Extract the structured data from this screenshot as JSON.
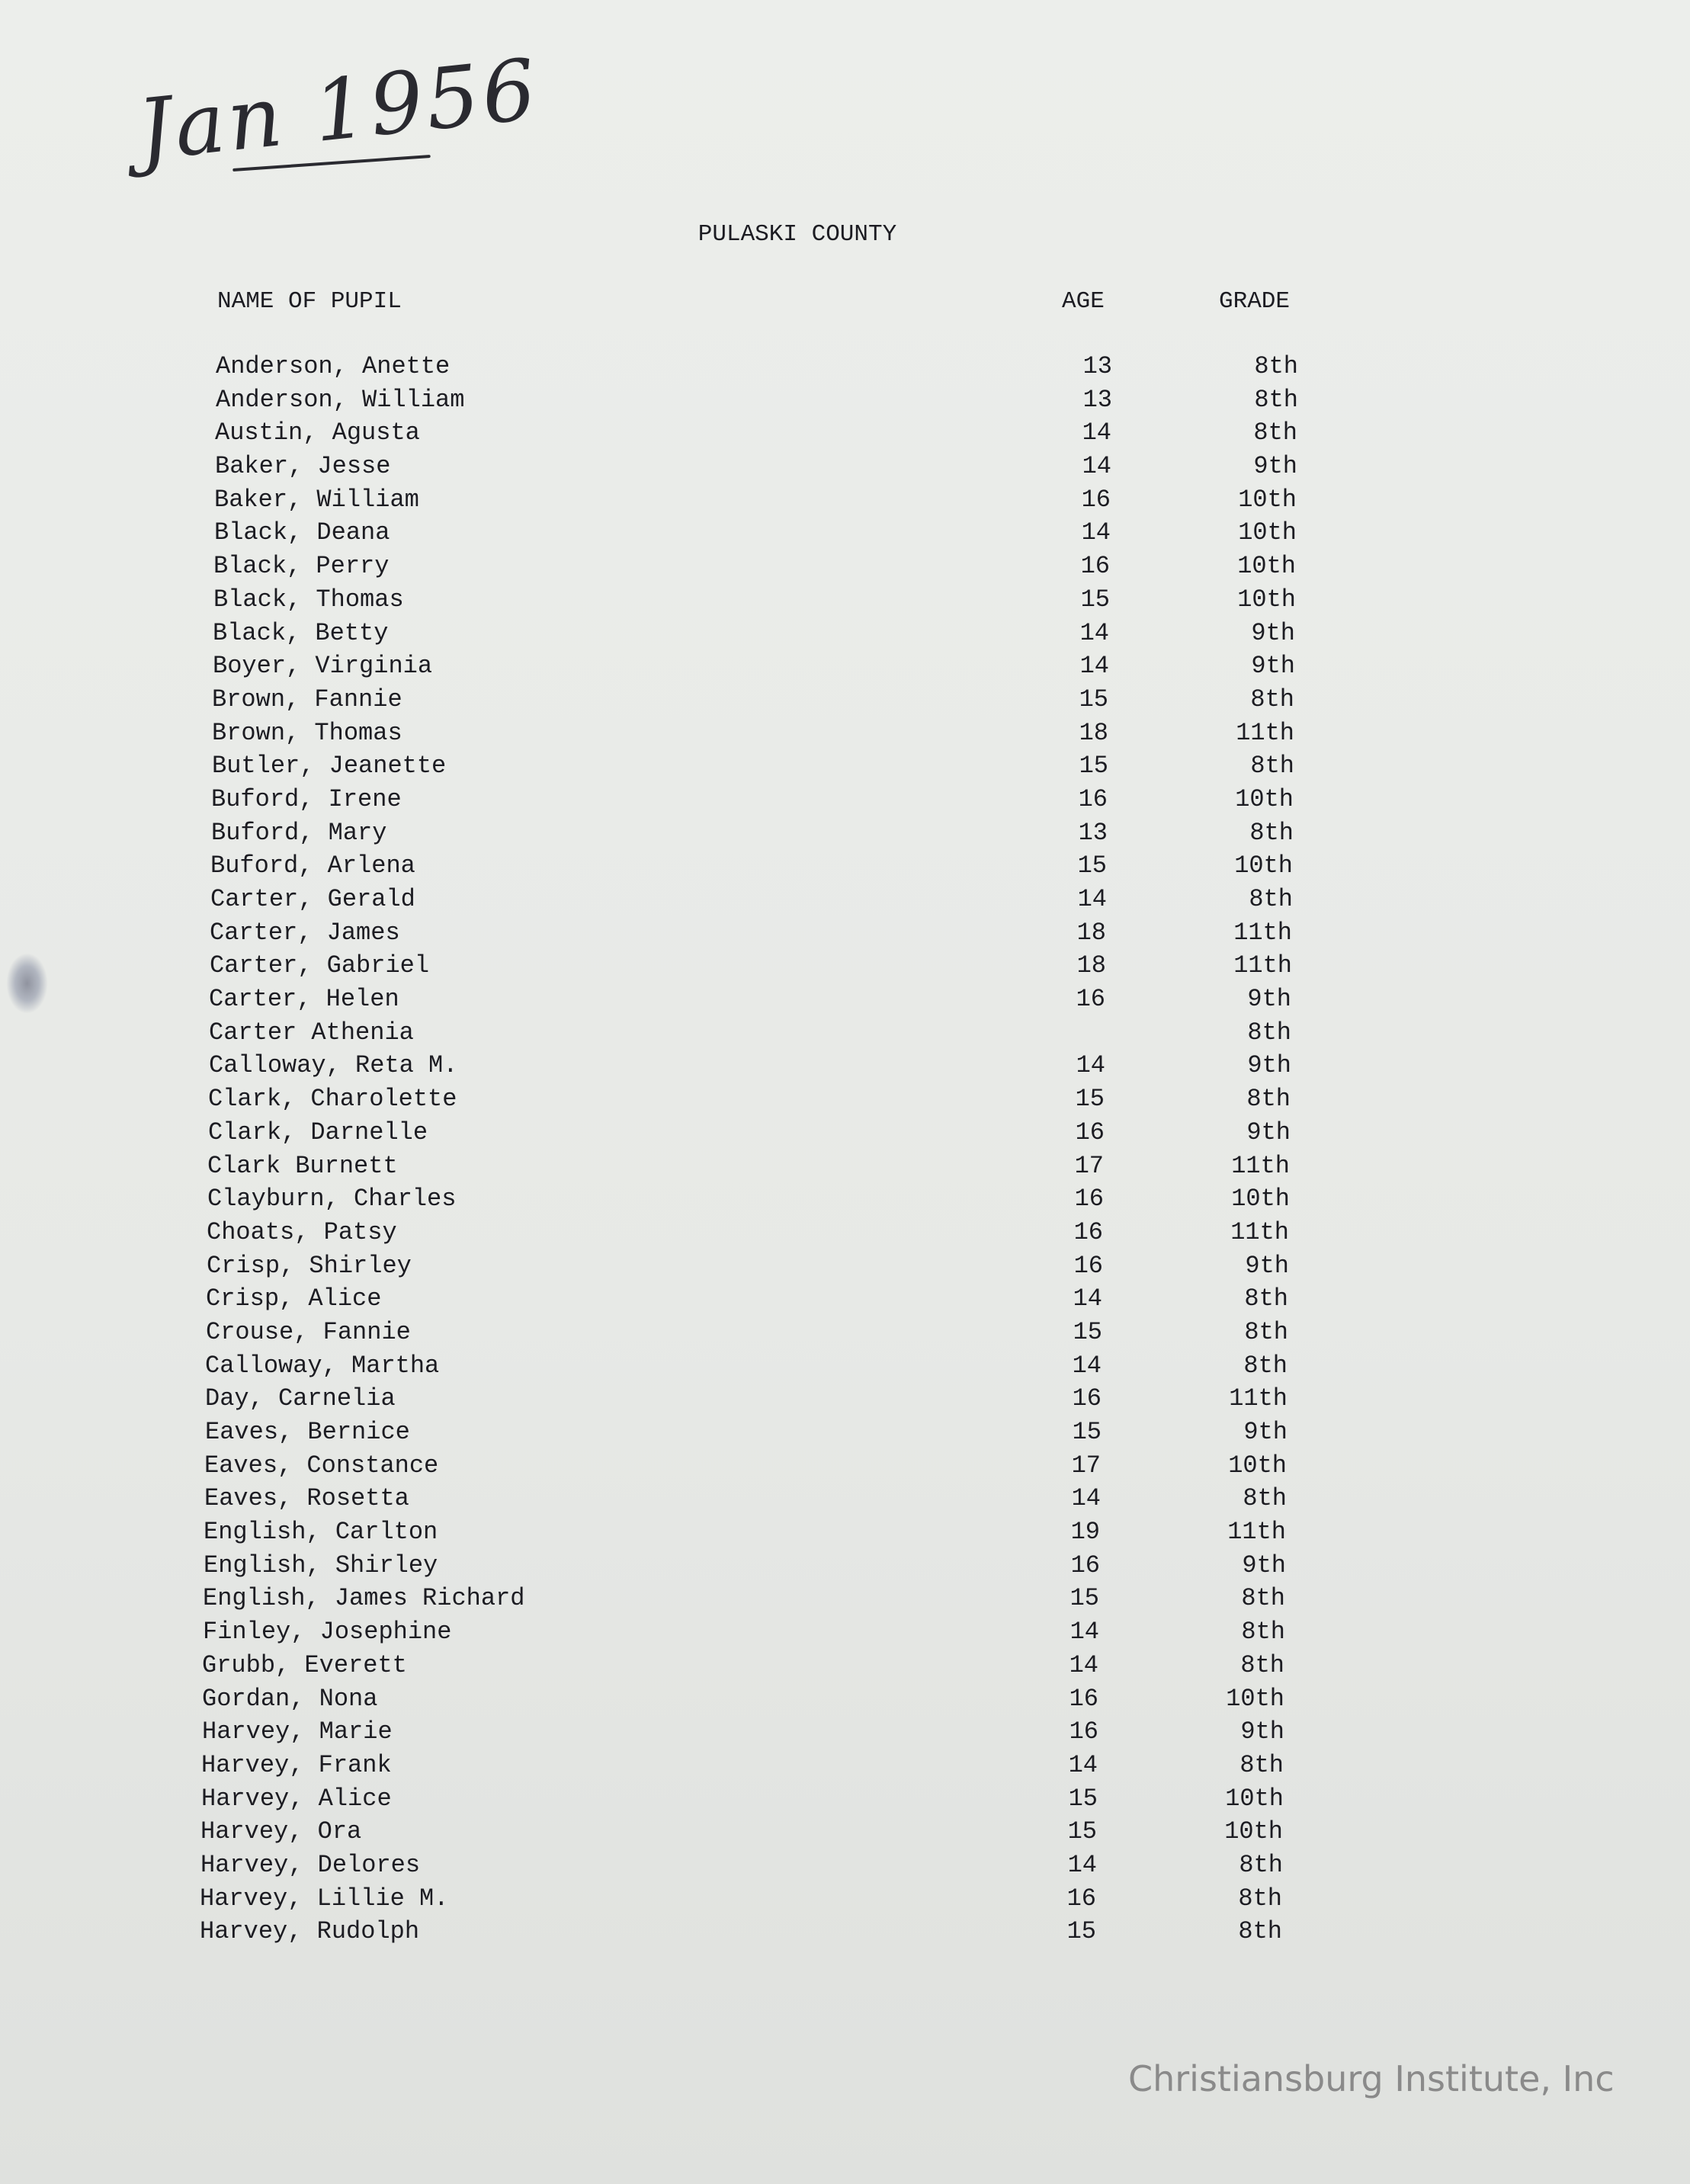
{
  "handwritten_date": "Jan 1956",
  "title": "PULASKI COUNTY",
  "columns": {
    "name": "NAME OF PUPIL",
    "age": "AGE",
    "grade": "GRADE"
  },
  "rows": [
    {
      "name": "Anderson, Anette",
      "age": "13",
      "grade": "8th"
    },
    {
      "name": "Anderson, William",
      "age": "13",
      "grade": "8th"
    },
    {
      "name": "Austin, Agusta",
      "age": "14",
      "grade": "8th"
    },
    {
      "name": "Baker, Jesse",
      "age": "14",
      "grade": "9th"
    },
    {
      "name": "Baker, William",
      "age": "16",
      "grade": "10th"
    },
    {
      "name": "Black, Deana",
      "age": "14",
      "grade": "10th"
    },
    {
      "name": "Black, Perry",
      "age": "16",
      "grade": "10th"
    },
    {
      "name": "Black, Thomas",
      "age": "15",
      "grade": "10th"
    },
    {
      "name": "Black, Betty",
      "age": "14",
      "grade": "9th"
    },
    {
      "name": "Boyer, Virginia",
      "age": "14",
      "grade": "9th"
    },
    {
      "name": "Brown, Fannie",
      "age": "15",
      "grade": "8th"
    },
    {
      "name": "Brown, Thomas",
      "age": "18",
      "grade": "11th"
    },
    {
      "name": "Butler, Jeanette",
      "age": "15",
      "grade": "8th"
    },
    {
      "name": "Buford, Irene",
      "age": "16",
      "grade": "10th"
    },
    {
      "name": "Buford, Mary",
      "age": "13",
      "grade": "8th"
    },
    {
      "name": "Buford, Arlena",
      "age": "15",
      "grade": "10th"
    },
    {
      "name": "Carter, Gerald",
      "age": "14",
      "grade": "8th"
    },
    {
      "name": "Carter, James",
      "age": "18",
      "grade": "11th"
    },
    {
      "name": "Carter, Gabriel",
      "age": "18",
      "grade": "11th"
    },
    {
      "name": "Carter, Helen",
      "age": "16",
      "grade": "9th"
    },
    {
      "name": "Carter Athenia",
      "age": "",
      "grade": "8th"
    },
    {
      "name": "Calloway, Reta M.",
      "age": "14",
      "grade": "9th"
    },
    {
      "name": "Clark, Charolette",
      "age": "15",
      "grade": "8th"
    },
    {
      "name": "Clark, Darnelle",
      "age": "16",
      "grade": "9th"
    },
    {
      "name": "Clark Burnett",
      "age": "17",
      "grade": "11th"
    },
    {
      "name": "Clayburn, Charles",
      "age": "16",
      "grade": "10th"
    },
    {
      "name": "Choats, Patsy",
      "age": "16",
      "grade": "11th"
    },
    {
      "name": "Crisp, Shirley",
      "age": "16",
      "grade": "9th"
    },
    {
      "name": "Crisp, Alice",
      "age": "14",
      "grade": "8th"
    },
    {
      "name": "Crouse, Fannie",
      "age": "15",
      "grade": "8th"
    },
    {
      "name": "Calloway, Martha",
      "age": "14",
      "grade": "8th"
    },
    {
      "name": "Day, Carnelia",
      "age": "16",
      "grade": "11th"
    },
    {
      "name": "Eaves, Bernice",
      "age": "15",
      "grade": "9th"
    },
    {
      "name": "Eaves, Constance",
      "age": "17",
      "grade": "10th"
    },
    {
      "name": "Eaves, Rosetta",
      "age": "14",
      "grade": "8th"
    },
    {
      "name": "English, Carlton",
      "age": "19",
      "grade": "11th"
    },
    {
      "name": "English, Shirley",
      "age": "16",
      "grade": "9th"
    },
    {
      "name": "English, James Richard",
      "age": "15",
      "grade": "8th"
    },
    {
      "name": "Finley, Josephine",
      "age": "14",
      "grade": "8th"
    },
    {
      "name": "Grubb, Everett",
      "age": "14",
      "grade": "8th"
    },
    {
      "name": "Gordan, Nona",
      "age": "16",
      "grade": "10th"
    },
    {
      "name": "Harvey, Marie",
      "age": "16",
      "grade": "9th"
    },
    {
      "name": "Harvey, Frank",
      "age": "14",
      "grade": "8th"
    },
    {
      "name": "Harvey, Alice",
      "age": "15",
      "grade": "10th"
    },
    {
      "name": "Harvey, Ora",
      "age": "15",
      "grade": "10th"
    },
    {
      "name": "Harvey, Delores",
      "age": "14",
      "grade": "8th"
    },
    {
      "name": "Harvey, Lillie M.",
      "age": "16",
      "grade": "8th"
    },
    {
      "name": "Harvey, Rudolph",
      "age": "15",
      "grade": "8th"
    }
  ],
  "watermark": "Christiansburg Institute, Inc"
}
